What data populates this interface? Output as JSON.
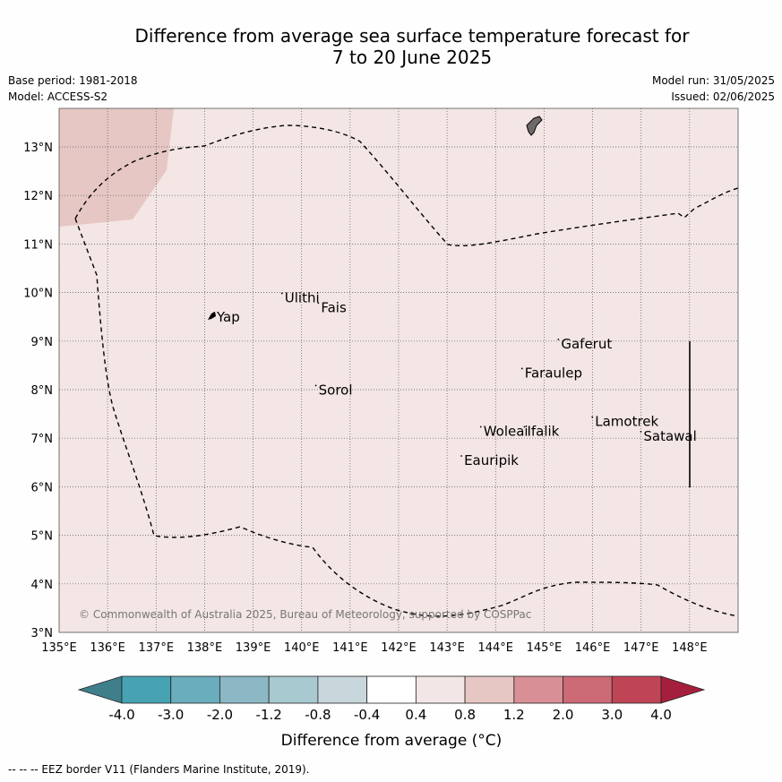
{
  "title": {
    "line1": "Difference from average sea surface temperature forecast for",
    "line2": "7 to 20 June 2025"
  },
  "meta": {
    "base_period": "Base period: 1981-2018",
    "model": "Model: ACCESS-S2",
    "model_run": "Model run: 31/05/2025",
    "issued": "Issued: 02/06/2025"
  },
  "map": {
    "lon_ticks": [
      "135°E",
      "136°E",
      "137°E",
      "138°E",
      "139°E",
      "140°E",
      "141°E",
      "142°E",
      "143°E",
      "144°E",
      "145°E",
      "146°E",
      "147°E",
      "148°E"
    ],
    "lat_ticks": [
      "3°N",
      "4°N",
      "5°N",
      "6°N",
      "7°N",
      "8°N",
      "9°N",
      "10°N",
      "11°N",
      "12°N",
      "13°N"
    ],
    "background_color": "#f3e6e5",
    "anomaly_patch_color": "#e6c7c3",
    "land_color": "#6f6a6a",
    "places": [
      {
        "name": "Yap",
        "lon": 138.25,
        "lat": 9.4
      },
      {
        "name": "Ulithi",
        "lon": 139.65,
        "lat": 9.8
      },
      {
        "name": "Fais",
        "lon": 140.4,
        "lat": 9.6
      },
      {
        "name": "Gaferut",
        "lon": 145.35,
        "lat": 8.85
      },
      {
        "name": "Faraulep",
        "lon": 144.6,
        "lat": 8.25
      },
      {
        "name": "Sorol",
        "lon": 140.35,
        "lat": 7.9
      },
      {
        "name": "Woleai",
        "lon": 143.75,
        "lat": 7.05
      },
      {
        "name": "Ifalik",
        "lon": 144.65,
        "lat": 7.05
      },
      {
        "name": "Lamotrek",
        "lon": 146.05,
        "lat": 7.25
      },
      {
        "name": "Satawal",
        "lon": 147.05,
        "lat": 6.95
      },
      {
        "name": "Eauripik",
        "lon": 143.35,
        "lat": 6.45
      }
    ],
    "copyright": "© Commonwealth of Australia 2025, Bureau of Meteorology, supported by COSPPac"
  },
  "colorbar": {
    "labels": [
      "-4.0",
      "-3.0",
      "-2.0",
      "-1.2",
      "-0.8",
      "-0.4",
      "0.4",
      "0.8",
      "1.2",
      "2.0",
      "3.0",
      "4.0"
    ],
    "colors": [
      "#3f7f8b",
      "#47a3b4",
      "#6aadbc",
      "#8bb8c4",
      "#a8c9cf",
      "#c8d7dc",
      "#ffffff",
      "#f2e7e6",
      "#e6c7c3",
      "#d88f95",
      "#cc6a76",
      "#bf4556",
      "#a51f3d"
    ],
    "label": "Difference from average (°C)"
  },
  "footer": "-- -- -- EEZ border V11 (Flanders Marine Institute, 2019)."
}
